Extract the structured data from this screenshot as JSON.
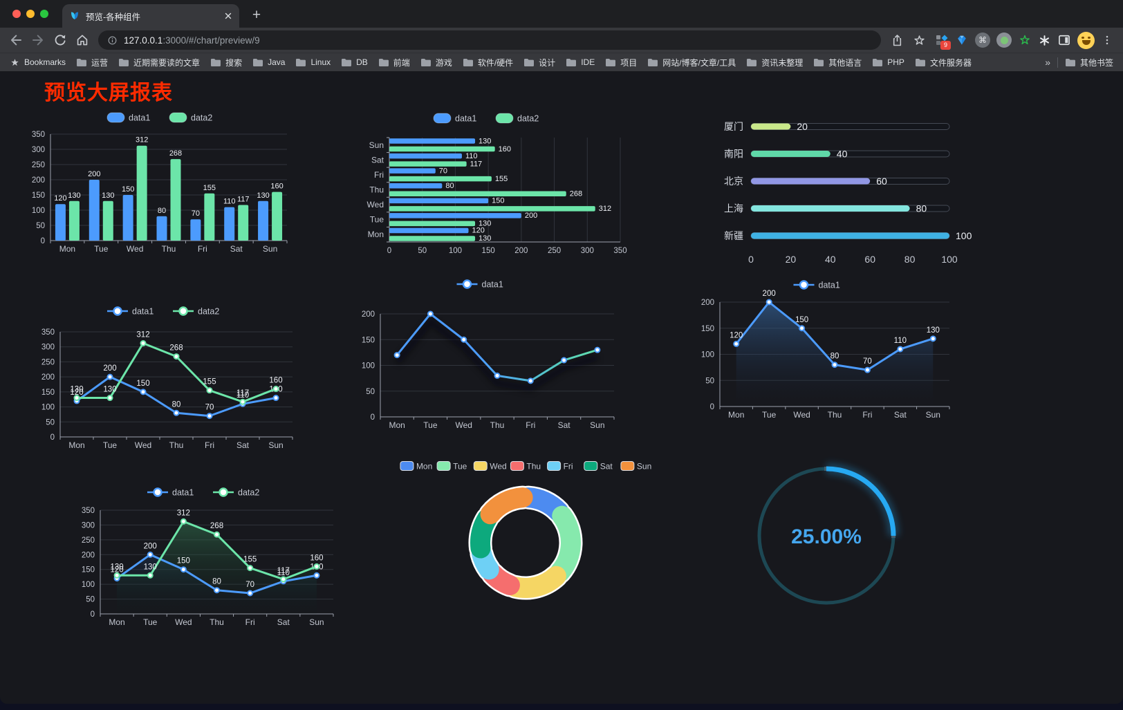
{
  "browser": {
    "tab_title": "预览-各种组件",
    "url": {
      "host": "127.0.0.1",
      "rest": ":3000/#/chart/preview/9"
    },
    "extension_badge": "9",
    "bookmarks_bar": {
      "label": "Bookmarks",
      "folders": [
        "运营",
        "近期需要读的文章",
        "搜索",
        "Java",
        "Linux",
        "DB",
        "前端",
        "游戏",
        "软件/硬件",
        "设计",
        "IDE",
        "项目",
        "网站/博客/文章/工具",
        "资讯未整理",
        "其他语言",
        "PHP",
        "文件服务器"
      ],
      "overflow_chevron": "»",
      "other_bookmarks": "其他书签"
    }
  },
  "page": {
    "title": "预览大屏报表"
  },
  "chart_data": [
    {
      "id": "bar-vertical",
      "type": "bar",
      "categories": [
        "Mon",
        "Tue",
        "Wed",
        "Thu",
        "Fri",
        "Sat",
        "Sun"
      ],
      "series": [
        {
          "name": "data1",
          "color": "#4C9BFD",
          "values": [
            120,
            200,
            150,
            80,
            70,
            110,
            130
          ]
        },
        {
          "name": "data2",
          "color": "#6CE5A9",
          "values": [
            130,
            130,
            312,
            268,
            155,
            117,
            160
          ]
        }
      ],
      "ylim": [
        0,
        350
      ],
      "yticks": [
        0,
        50,
        100,
        150,
        200,
        250,
        300,
        350
      ],
      "show_labels": true,
      "legend_position": "top"
    },
    {
      "id": "bar-horizontal",
      "type": "bar-horizontal",
      "categories": [
        "Mon",
        "Tue",
        "Wed",
        "Thu",
        "Fri",
        "Sat",
        "Sun"
      ],
      "series": [
        {
          "name": "data1",
          "color": "#4C9BFD",
          "values": [
            120,
            200,
            150,
            80,
            70,
            110,
            130
          ]
        },
        {
          "name": "data2",
          "color": "#6CE5A9",
          "values": [
            130,
            130,
            312,
            268,
            155,
            117,
            160
          ]
        }
      ],
      "xlim": [
        0,
        350
      ],
      "xticks": [
        0,
        50,
        100,
        150,
        200,
        250,
        300,
        350
      ],
      "show_labels": true,
      "legend_position": "top"
    },
    {
      "id": "progress-list",
      "type": "progress",
      "max": 100,
      "xticks": [
        0,
        20,
        40,
        60,
        80,
        100
      ],
      "items": [
        {
          "label": "厦门",
          "value": 20,
          "color": "#C9E88A"
        },
        {
          "label": "南阳",
          "value": 40,
          "color": "#5FD8A8"
        },
        {
          "label": "北京",
          "value": 60,
          "color": "#9197E5"
        },
        {
          "label": "上海",
          "value": 80,
          "color": "#83E5DE"
        },
        {
          "label": "新疆",
          "value": 100,
          "color": "#3FB1E3"
        }
      ]
    },
    {
      "id": "line-basic",
      "type": "line",
      "categories": [
        "Mon",
        "Tue",
        "Wed",
        "Thu",
        "Fri",
        "Sat",
        "Sun"
      ],
      "series": [
        {
          "name": "data1",
          "color": "#4C9BFD",
          "values": [
            120,
            200,
            150,
            80,
            70,
            110,
            130
          ]
        },
        {
          "name": "data2",
          "color": "#6CE5A9",
          "values": [
            130,
            130,
            312,
            268,
            155,
            117,
            160
          ]
        }
      ],
      "ylim": [
        0,
        350
      ],
      "yticks": [
        0,
        50,
        100,
        150,
        200,
        250,
        300,
        350
      ],
      "show_labels": true,
      "legend_position": "top"
    },
    {
      "id": "line-gradient",
      "type": "line",
      "shadow": true,
      "categories": [
        "Mon",
        "Tue",
        "Wed",
        "Thu",
        "Fri",
        "Sat",
        "Sun"
      ],
      "series": [
        {
          "name": "data1",
          "color": "#4C9BFD",
          "color_mid": "#55CCC0",
          "color_end": "#68E6A4",
          "values": [
            120,
            200,
            150,
            80,
            70,
            110,
            130
          ]
        }
      ],
      "ylim": [
        0,
        200
      ],
      "yticks": [
        0,
        50,
        100,
        150,
        200
      ],
      "show_labels": false,
      "legend_position": "top"
    },
    {
      "id": "area-single",
      "type": "line",
      "categories": [
        "Mon",
        "Tue",
        "Wed",
        "Thu",
        "Fri",
        "Sat",
        "Sun"
      ],
      "series": [
        {
          "name": "data1",
          "color": "#4C9BFD",
          "area_from": "rgba(58,110,170,0.6)",
          "area_to": "rgba(20,30,50,0)",
          "values": [
            120,
            200,
            150,
            80,
            70,
            110,
            130
          ]
        }
      ],
      "ylim": [
        0,
        200
      ],
      "yticks": [
        0,
        50,
        100,
        150,
        200
      ],
      "show_labels": true,
      "legend_position": "top"
    },
    {
      "id": "area-double",
      "type": "line",
      "categories": [
        "Mon",
        "Tue",
        "Wed",
        "Thu",
        "Fri",
        "Sat",
        "Sun"
      ],
      "series": [
        {
          "name": "data1",
          "color": "#4C9BFD",
          "area_from": "rgba(47,94,150,0.6)",
          "area_to": "rgba(10,20,40,0)",
          "values": [
            120,
            200,
            150,
            80,
            70,
            110,
            130
          ]
        },
        {
          "name": "data2",
          "color": "#6CE5A9",
          "area_from": "rgba(60,140,95,0.55)",
          "area_to": "rgba(10,30,20,0.05)",
          "values": [
            130,
            130,
            312,
            268,
            155,
            117,
            160
          ]
        }
      ],
      "ylim": [
        0,
        350
      ],
      "yticks": [
        0,
        50,
        100,
        150,
        200,
        250,
        300,
        350
      ],
      "show_labels": true,
      "legend_position": "top"
    },
    {
      "id": "donut",
      "type": "pie",
      "slices": [
        {
          "label": "Mon",
          "value": 120,
          "color": "#4D8BF0"
        },
        {
          "label": "Tue",
          "value": 200,
          "color": "#86E9AD"
        },
        {
          "label": "Wed",
          "value": 150,
          "color": "#F5D664"
        },
        {
          "label": "Thu",
          "value": 80,
          "color": "#F56E6E"
        },
        {
          "label": "Fri",
          "value": 70,
          "color": "#6ED0F5"
        },
        {
          "label": "Sat",
          "value": 110,
          "color": "#0DA97D"
        },
        {
          "label": "Sun",
          "value": 130,
          "color": "#F2913D"
        }
      ],
      "legend_position": "top"
    },
    {
      "id": "gauge",
      "type": "gauge",
      "label": "25.00%",
      "percent": 25,
      "color": "#27A9F2",
      "track_color": "#1D4854",
      "text_color": "#45A6EE"
    }
  ]
}
